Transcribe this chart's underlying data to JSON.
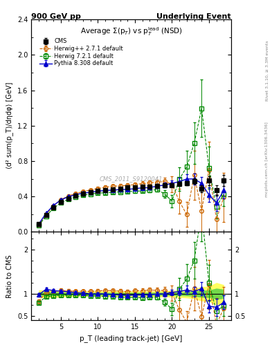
{
  "title_top_left": "900 GeV pp",
  "title_top_right": "Underlying Event",
  "plot_title": "Average Σ(p_T) vs p_T^{lead} (NSD)",
  "watermark": "CMS_2011_S9120041",
  "right_label_top": "Rivet 3.1.10, ≥ 3.3M events",
  "right_label_bottom": "mcplots.cern.ch [arXiv:1306.3436]",
  "xlabel": "p_T (leading track-jet) [GeV]",
  "ylabel_main": "⟨d² sum(p_T)/dηdφ⟩ [GeV]",
  "ylabel_ratio": "Ratio to CMS",
  "ylim_main": [
    0,
    2.4
  ],
  "ylim_ratio": [
    0.4,
    2.4
  ],
  "xlim": [
    1,
    28
  ],
  "cms_x": [
    2.0,
    3.0,
    4.0,
    5.0,
    6.0,
    7.0,
    8.0,
    9.0,
    10.0,
    11.0,
    12.0,
    13.0,
    14.0,
    15.0,
    16.0,
    17.0,
    18.0,
    19.0,
    20.0,
    21.0,
    22.0,
    23.0,
    24.0,
    25.0,
    26.0,
    27.0
  ],
  "cms_y": [
    0.09,
    0.19,
    0.28,
    0.34,
    0.38,
    0.41,
    0.43,
    0.45,
    0.46,
    0.47,
    0.48,
    0.49,
    0.5,
    0.5,
    0.51,
    0.51,
    0.52,
    0.53,
    0.53,
    0.54,
    0.55,
    0.57,
    0.49,
    0.58,
    0.47,
    0.58
  ],
  "cms_yerr": [
    0.004,
    0.008,
    0.012,
    0.013,
    0.013,
    0.013,
    0.013,
    0.013,
    0.015,
    0.015,
    0.016,
    0.016,
    0.016,
    0.016,
    0.017,
    0.017,
    0.018,
    0.019,
    0.02,
    0.022,
    0.026,
    0.032,
    0.04,
    0.05,
    0.06,
    0.06
  ],
  "hpp_x": [
    2.0,
    3.0,
    4.0,
    5.0,
    6.0,
    7.0,
    8.0,
    9.0,
    10.0,
    11.0,
    12.0,
    13.0,
    14.0,
    15.0,
    16.0,
    17.0,
    18.0,
    19.0,
    20.0,
    21.0,
    22.0,
    23.0,
    24.0,
    25.0,
    26.0,
    27.0
  ],
  "hpp_y": [
    0.075,
    0.195,
    0.295,
    0.365,
    0.405,
    0.435,
    0.455,
    0.475,
    0.49,
    0.505,
    0.515,
    0.52,
    0.525,
    0.535,
    0.545,
    0.555,
    0.56,
    0.57,
    0.54,
    0.345,
    0.195,
    0.64,
    0.24,
    0.7,
    0.145,
    0.39
  ],
  "hpp_yerr": [
    0.003,
    0.008,
    0.012,
    0.015,
    0.016,
    0.016,
    0.016,
    0.016,
    0.018,
    0.019,
    0.02,
    0.021,
    0.022,
    0.023,
    0.025,
    0.027,
    0.03,
    0.04,
    0.09,
    0.14,
    0.14,
    0.28,
    0.28,
    0.32,
    0.28,
    0.28
  ],
  "h721_x": [
    2.0,
    3.0,
    4.0,
    5.0,
    6.0,
    7.0,
    8.0,
    9.0,
    10.0,
    11.0,
    12.0,
    13.0,
    14.0,
    15.0,
    16.0,
    17.0,
    18.0,
    19.0,
    20.0,
    21.0,
    22.0,
    23.0,
    24.0,
    25.0,
    26.0,
    27.0
  ],
  "h721_y": [
    0.072,
    0.178,
    0.268,
    0.328,
    0.368,
    0.395,
    0.415,
    0.428,
    0.438,
    0.442,
    0.448,
    0.452,
    0.458,
    0.46,
    0.462,
    0.468,
    0.478,
    0.428,
    0.348,
    0.595,
    0.735,
    1.0,
    1.395,
    0.725,
    0.285,
    0.425
  ],
  "h721_yerr": [
    0.003,
    0.007,
    0.011,
    0.012,
    0.013,
    0.013,
    0.013,
    0.013,
    0.015,
    0.015,
    0.015,
    0.015,
    0.016,
    0.016,
    0.017,
    0.018,
    0.022,
    0.042,
    0.072,
    0.135,
    0.185,
    0.235,
    0.325,
    0.235,
    0.135,
    0.135
  ],
  "pythia_x": [
    2.0,
    3.0,
    4.0,
    5.0,
    6.0,
    7.0,
    8.0,
    9.0,
    10.0,
    11.0,
    12.0,
    13.0,
    14.0,
    15.0,
    16.0,
    17.0,
    18.0,
    19.0,
    20.0,
    21.0,
    22.0,
    23.0,
    24.0,
    25.0,
    26.0,
    27.0
  ],
  "pythia_y": [
    0.088,
    0.21,
    0.3,
    0.36,
    0.398,
    0.42,
    0.438,
    0.448,
    0.46,
    0.468,
    0.472,
    0.478,
    0.48,
    0.488,
    0.498,
    0.5,
    0.518,
    0.528,
    0.548,
    0.568,
    0.598,
    0.598,
    0.548,
    0.418,
    0.328,
    0.468
  ],
  "pythia_yerr": [
    0.003,
    0.007,
    0.009,
    0.012,
    0.013,
    0.013,
    0.013,
    0.013,
    0.015,
    0.016,
    0.016,
    0.016,
    0.017,
    0.019,
    0.02,
    0.022,
    0.025,
    0.028,
    0.033,
    0.042,
    0.052,
    0.062,
    0.072,
    0.082,
    0.092,
    0.092
  ],
  "cms_color": "#000000",
  "hpp_color": "#cc6600",
  "h721_color": "#008800",
  "pythia_color": "#0000cc",
  "band_yellow": "#ffff44",
  "band_green": "#44cc44"
}
